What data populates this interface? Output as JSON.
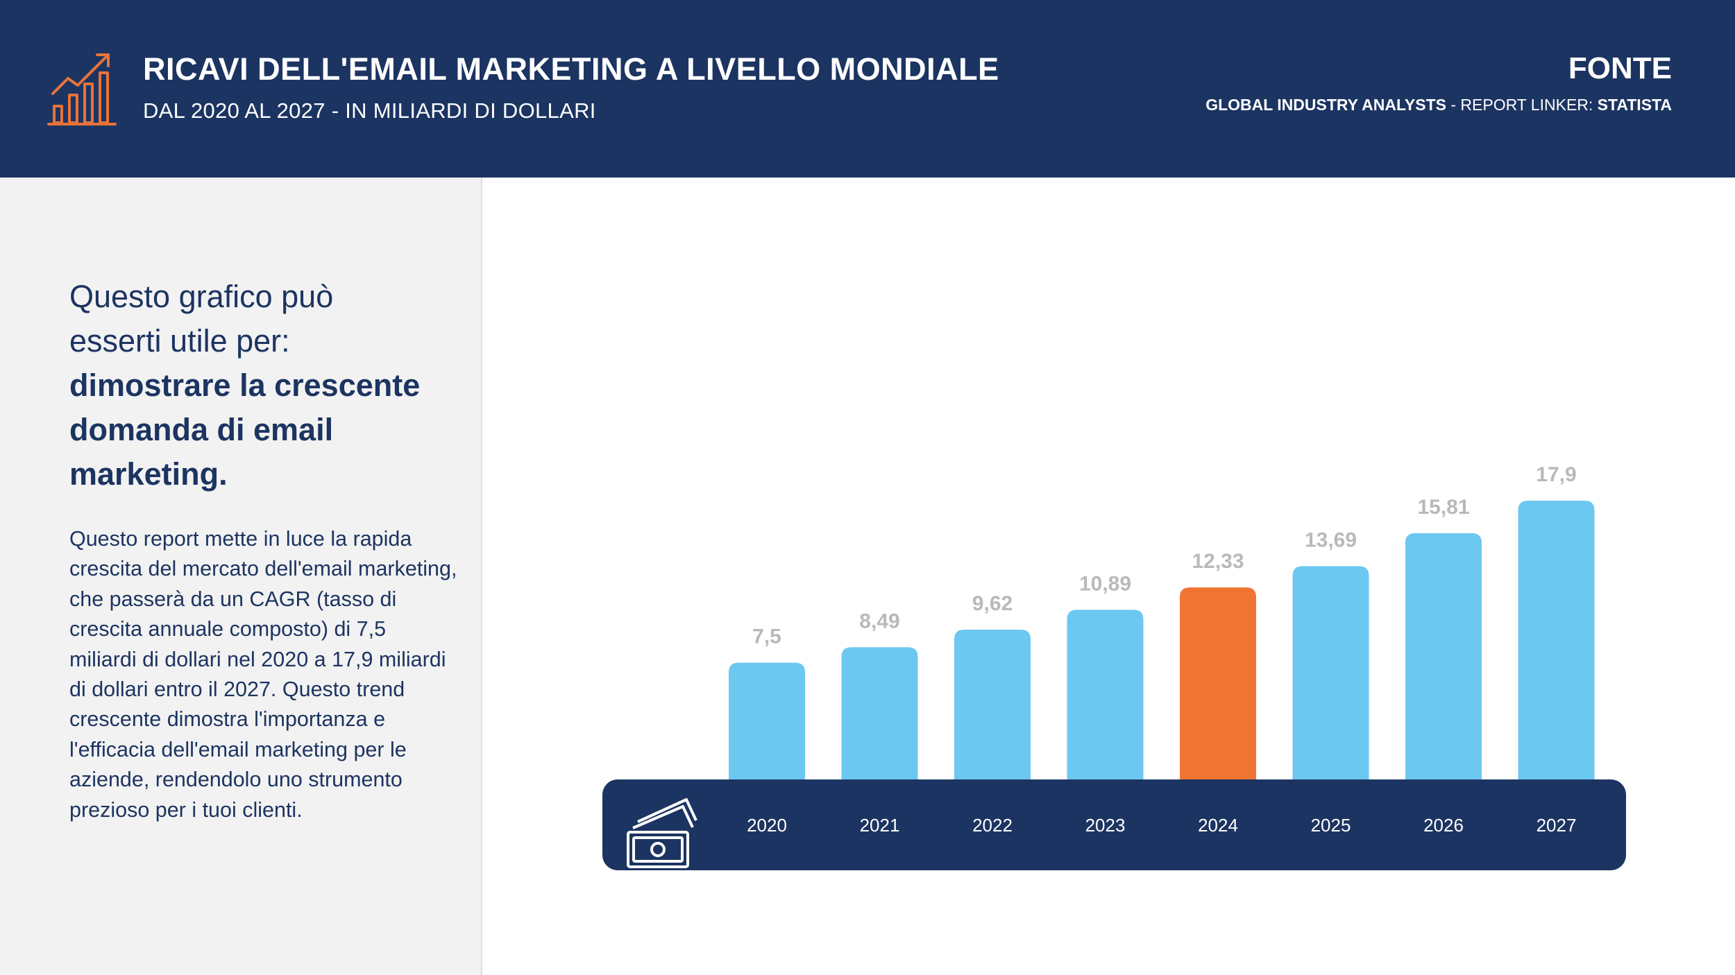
{
  "header": {
    "title": "RICAVI DELL'EMAIL MARKETING A LIVELLO MONDIALE",
    "subtitle": "DAL 2020 AL 2027 - IN MILIARDI DI DOLLARI",
    "icon": "growth-chart-icon",
    "source_label": "FONTE",
    "source_bold_1": "GLOBAL INDUSTRY ANALYSTS",
    "source_middle": " - REPORT LINKER: ",
    "source_bold_2": "STATISTA"
  },
  "sidebar": {
    "lead_line1": "Questo grafico può",
    "lead_line2": "esserti utile per:",
    "lead_strong": "dimostrare la crescente domanda di email marketing.",
    "body": "Questo report mette in luce la rapida crescita del mercato dell'email marketing, che passerà da un CAGR (tasso di crescita annuale composto) di 7,5 miliardi di dollari nel 2020 a 17,9 miliardi di dollari entro il 2027. Questo trend crescente dimostra l'importanza e l'efficacia dell'email marketing per le aziende, rendendolo uno strumento prezioso per i tuoi clienti."
  },
  "colors": {
    "navy": "#1c3461",
    "bar": "#6cc7f1",
    "highlight": "#f07533",
    "label": "#b9b9b9",
    "icon_accent": "#e8733a"
  },
  "chart_data": {
    "type": "bar",
    "categories": [
      "2020",
      "2021",
      "2022",
      "2023",
      "2024",
      "2025",
      "2026",
      "2027"
    ],
    "values": [
      7.5,
      8.49,
      9.62,
      10.89,
      12.33,
      13.69,
      15.81,
      17.9
    ],
    "value_labels": [
      "7,5",
      "8,49",
      "9,62",
      "10,89",
      "12,33",
      "13,69",
      "15,81",
      "17,9"
    ],
    "highlight_category": "2024",
    "axis_icon": "money-bills-icon",
    "title": "RICAVI DELL'EMAIL MARKETING A LIVELLO MONDIALE",
    "xlabel": "",
    "ylabel": "",
    "ylim": [
      0,
      17.9
    ],
    "grid": false,
    "legend": "none"
  }
}
